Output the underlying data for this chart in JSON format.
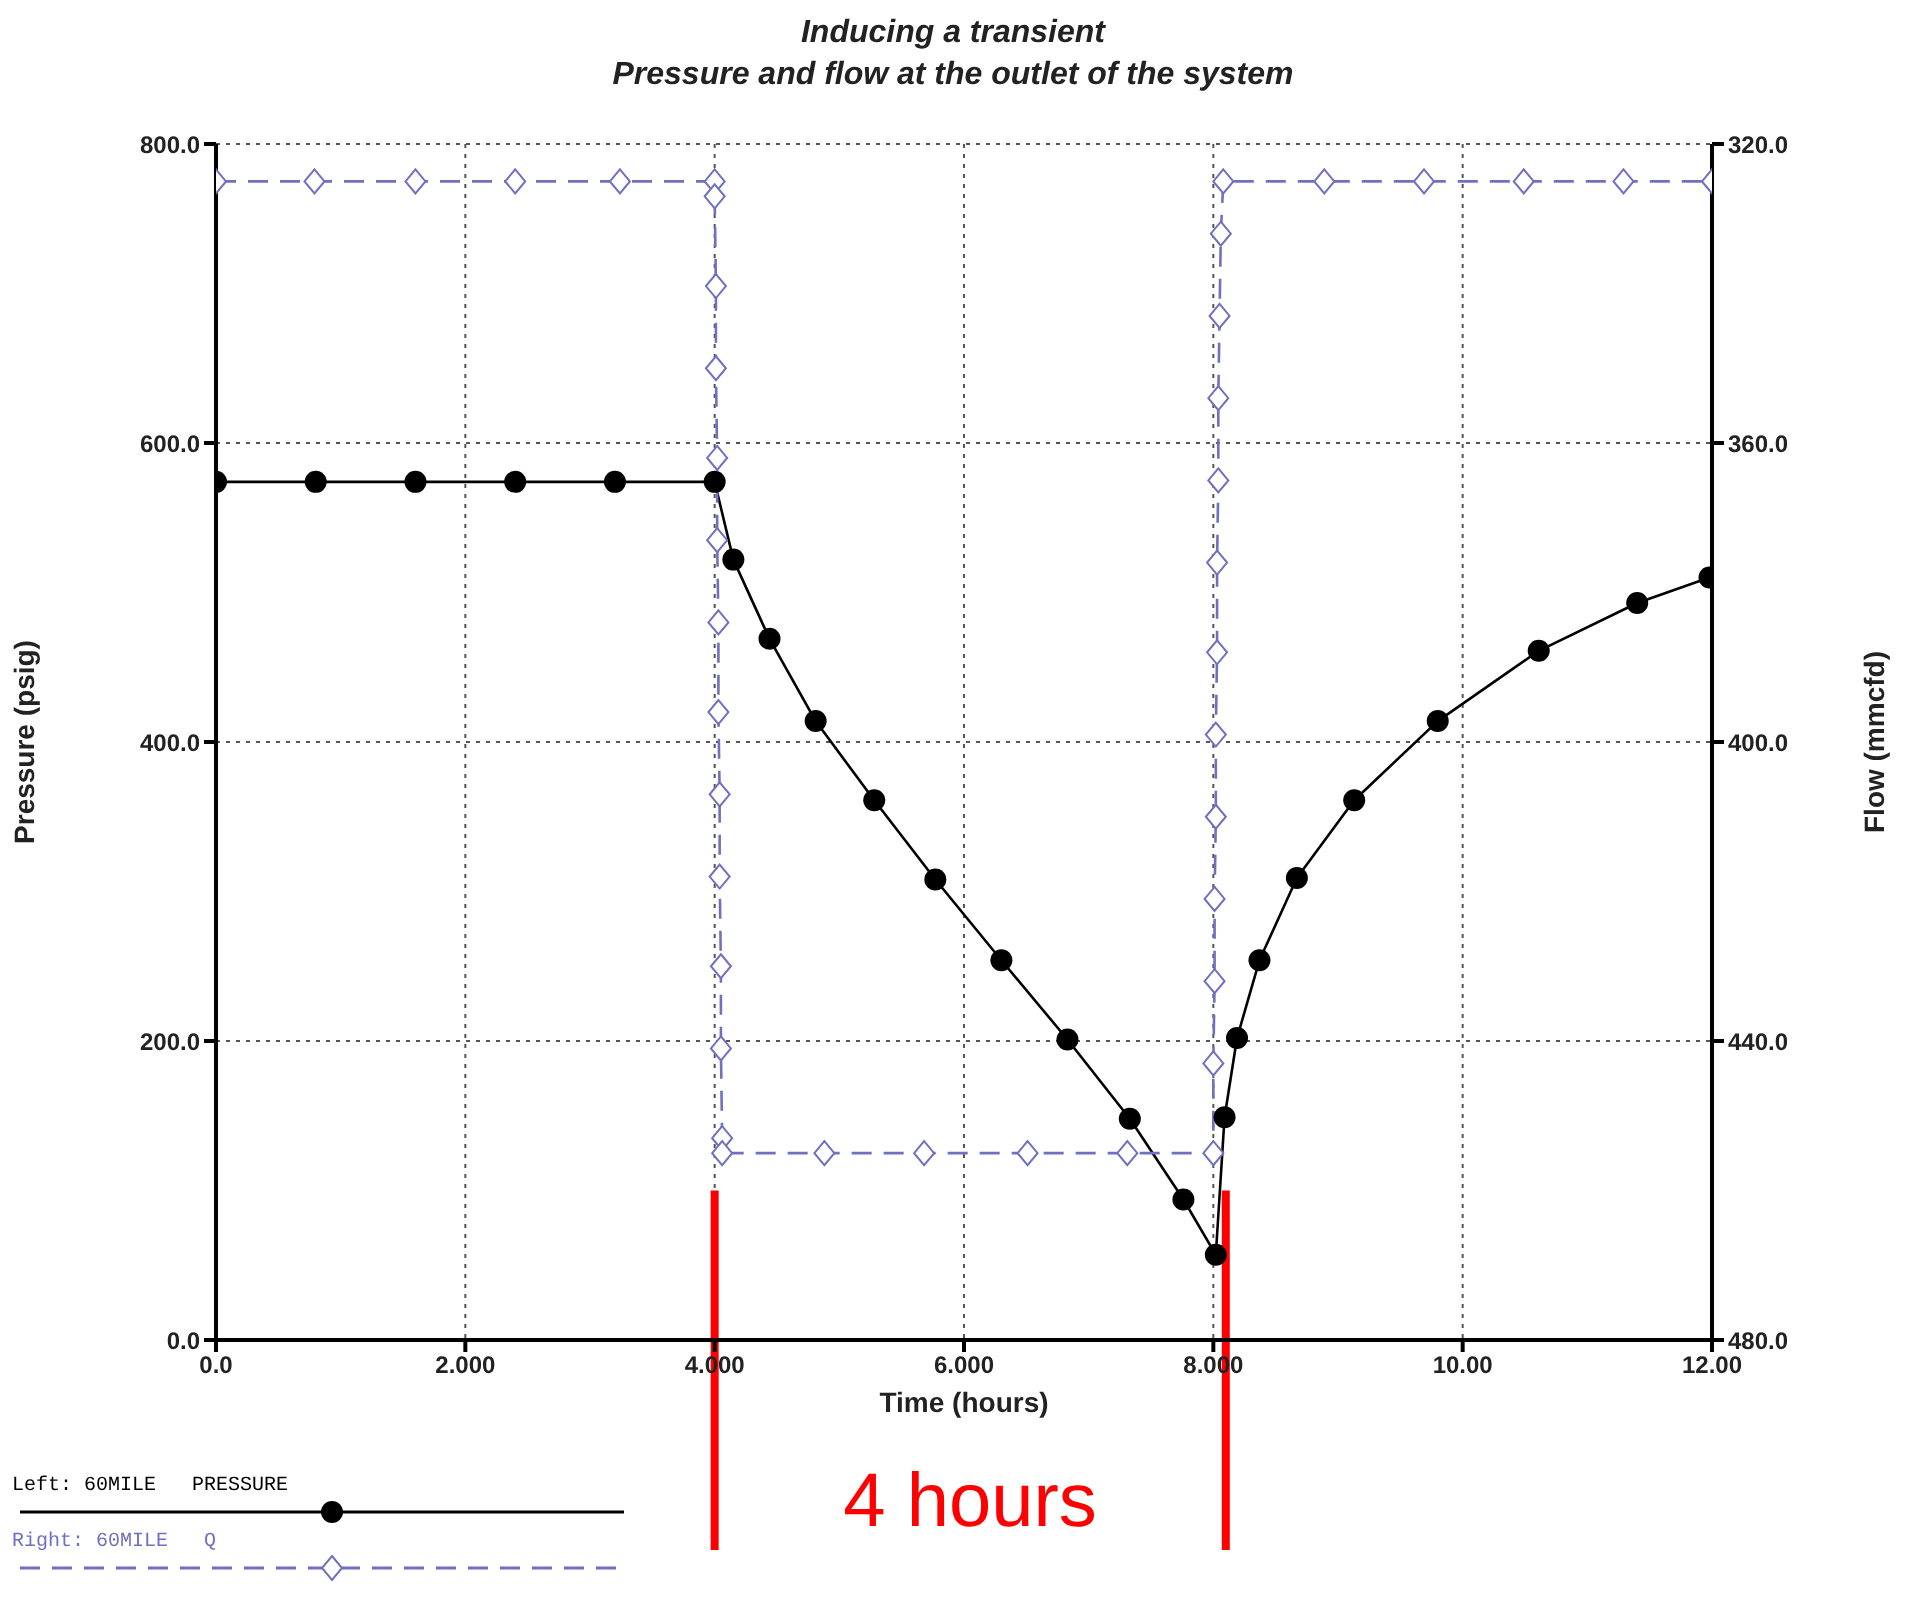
{
  "chart_data": {
    "type": "line",
    "title": "Inducing a transient",
    "subtitle": "Pressure and flow at the outlet of the system",
    "xlabel": "Time (hours)",
    "ylabel": "Pressure (psig)",
    "y2label": "Flow (mmcfd)",
    "xlim": [
      0,
      12
    ],
    "xticks": [
      {
        "value": 0,
        "label": "0.0"
      },
      {
        "value": 2,
        "label": "2.000"
      },
      {
        "value": 4,
        "label": "4.000"
      },
      {
        "value": 6,
        "label": "6.000"
      },
      {
        "value": 8,
        "label": "8.000"
      },
      {
        "value": 10,
        "label": "10.00"
      },
      {
        "value": 12,
        "label": "12.00"
      }
    ],
    "ylim": [
      0,
      800
    ],
    "yticks": [
      {
        "value": 0,
        "label": "0.0"
      },
      {
        "value": 200,
        "label": "200.0"
      },
      {
        "value": 400,
        "label": "400.0"
      },
      {
        "value": 600,
        "label": "600.0"
      },
      {
        "value": 800,
        "label": "800.0"
      }
    ],
    "y2lim": [
      480,
      320
    ],
    "y2ticks": [
      {
        "value": 320,
        "label": "320.0"
      },
      {
        "value": 360,
        "label": "360.0"
      },
      {
        "value": 400,
        "label": "400.0"
      },
      {
        "value": 440,
        "label": "440.0"
      },
      {
        "value": 480,
        "label": "480.0"
      }
    ],
    "grid": true,
    "legend": "bottom left",
    "series": [
      {
        "name": "Left: 60MILE   PRESSURE",
        "color": "#000000",
        "marker": "circle",
        "line_style": "solid",
        "x": [
          0,
          0.8,
          1.6,
          2.4,
          3.2,
          4.0,
          4.15,
          4.44,
          4.81,
          5.28,
          5.77,
          6.3,
          6.83,
          7.33,
          7.76,
          8.02,
          8.09,
          8.19,
          8.37,
          8.67,
          9.13,
          9.8,
          10.61,
          11.4,
          11.98
        ],
        "values": [
          574,
          574,
          574,
          574,
          574,
          574,
          522,
          469,
          414,
          361,
          308,
          254,
          201,
          148,
          94,
          57,
          149,
          202,
          254,
          309,
          361,
          414,
          461,
          493,
          510
        ]
      },
      {
        "name": "Right: 60MILE   Q",
        "color": "#7070c0",
        "marker": "diamond",
        "line_style": "dashed",
        "axis": "y2",
        "x": [
          0,
          0.79,
          1.6,
          2.4,
          3.24,
          4.0,
          4.0,
          4.01,
          4.01,
          4.02,
          4.02,
          4.03,
          4.03,
          4.04,
          4.04,
          4.05,
          4.05,
          4.06,
          4.06,
          4.88,
          5.68,
          6.51,
          7.31,
          8.0,
          8.0,
          8.01,
          8.01,
          8.02,
          8.02,
          8.03,
          8.03,
          8.04,
          8.04,
          8.05,
          8.06,
          8.08,
          8.89,
          9.69,
          10.49,
          11.29,
          12
        ],
        "values": [
          325,
          325,
          325,
          325,
          325,
          325,
          327,
          339,
          350,
          362,
          373,
          384,
          396,
          407,
          418,
          430,
          441,
          453,
          455,
          455,
          455,
          455,
          455,
          455,
          443,
          432,
          421,
          410,
          399,
          388,
          376,
          365,
          354,
          343,
          332,
          325,
          325,
          325,
          325,
          325,
          325
        ]
      }
    ],
    "ref_lines": [
      {
        "axis": "x",
        "value": 4.0,
        "color": "#ff0000"
      },
      {
        "axis": "x",
        "value": 8.1,
        "color": "#ff0000"
      }
    ],
    "annotations": [
      "4 hours"
    ]
  }
}
